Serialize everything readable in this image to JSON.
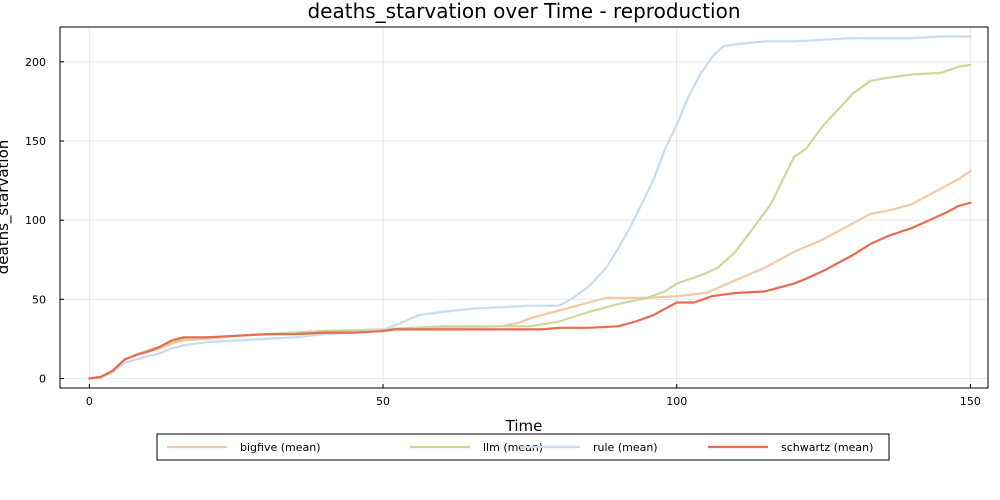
{
  "chart_data": {
    "type": "line",
    "title": "deaths_starvation over Time - reproduction",
    "xlabel": "Time",
    "ylabel": "deaths_starvation",
    "xlim": [
      -5,
      153
    ],
    "ylim": [
      -6,
      222
    ],
    "xticks": [
      0,
      50,
      100,
      150
    ],
    "yticks": [
      0,
      50,
      100,
      150,
      200
    ],
    "grid": true,
    "legend_position": "bottom-center",
    "series": [
      {
        "name": "bigfive (mean)",
        "color": "#f4c7a6",
        "points": [
          [
            0,
            0
          ],
          [
            2,
            1
          ],
          [
            4,
            5
          ],
          [
            6,
            12
          ],
          [
            8,
            15
          ],
          [
            10,
            17
          ],
          [
            12,
            19
          ],
          [
            14,
            22
          ],
          [
            16,
            24
          ],
          [
            20,
            25
          ],
          [
            25,
            27
          ],
          [
            30,
            28
          ],
          [
            40,
            30
          ],
          [
            50,
            31
          ],
          [
            55,
            32
          ],
          [
            60,
            32
          ],
          [
            70,
            33
          ],
          [
            73,
            35
          ],
          [
            75,
            38
          ],
          [
            80,
            43
          ],
          [
            85,
            48
          ],
          [
            88,
            51
          ],
          [
            95,
            51
          ],
          [
            100,
            52
          ],
          [
            105,
            54
          ],
          [
            110,
            62
          ],
          [
            115,
            70
          ],
          [
            120,
            80
          ],
          [
            125,
            88
          ],
          [
            130,
            98
          ],
          [
            133,
            104
          ],
          [
            136,
            106
          ],
          [
            140,
            110
          ],
          [
            143,
            116
          ],
          [
            146,
            122
          ],
          [
            148,
            126
          ],
          [
            150,
            131
          ]
        ]
      },
      {
        "name": "llm (mean)",
        "color": "#c8d99b",
        "points": [
          [
            0,
            0
          ],
          [
            2,
            1
          ],
          [
            4,
            5
          ],
          [
            6,
            12
          ],
          [
            8,
            15
          ],
          [
            10,
            18
          ],
          [
            12,
            20
          ],
          [
            14,
            23
          ],
          [
            16,
            25
          ],
          [
            20,
            26
          ],
          [
            25,
            27
          ],
          [
            30,
            28
          ],
          [
            40,
            30
          ],
          [
            50,
            31
          ],
          [
            55,
            32
          ],
          [
            60,
            33
          ],
          [
            70,
            33
          ],
          [
            75,
            33
          ],
          [
            80,
            36
          ],
          [
            85,
            42
          ],
          [
            90,
            47
          ],
          [
            95,
            51
          ],
          [
            98,
            55
          ],
          [
            100,
            60
          ],
          [
            104,
            65
          ],
          [
            107,
            70
          ],
          [
            110,
            80
          ],
          [
            113,
            95
          ],
          [
            116,
            110
          ],
          [
            118,
            125
          ],
          [
            120,
            140
          ],
          [
            122,
            145
          ],
          [
            125,
            160
          ],
          [
            128,
            172
          ],
          [
            130,
            180
          ],
          [
            133,
            188
          ],
          [
            136,
            190
          ],
          [
            140,
            192
          ],
          [
            145,
            193
          ],
          [
            148,
            197
          ],
          [
            150,
            198
          ]
        ]
      },
      {
        "name": "rule (mean)",
        "color": "#c9dcef",
        "points": [
          [
            0,
            0
          ],
          [
            2,
            1
          ],
          [
            4,
            4
          ],
          [
            6,
            10
          ],
          [
            8,
            12
          ],
          [
            10,
            14
          ],
          [
            12,
            16
          ],
          [
            14,
            19
          ],
          [
            16,
            21
          ],
          [
            20,
            23
          ],
          [
            25,
            24
          ],
          [
            30,
            25
          ],
          [
            35,
            26
          ],
          [
            40,
            28
          ],
          [
            45,
            29
          ],
          [
            50,
            31
          ],
          [
            53,
            35
          ],
          [
            56,
            40
          ],
          [
            60,
            42
          ],
          [
            65,
            44
          ],
          [
            70,
            45
          ],
          [
            75,
            46
          ],
          [
            80,
            46
          ],
          [
            82,
            50
          ],
          [
            85,
            58
          ],
          [
            88,
            70
          ],
          [
            90,
            82
          ],
          [
            92,
            95
          ],
          [
            94,
            110
          ],
          [
            96,
            125
          ],
          [
            98,
            145
          ],
          [
            100,
            160
          ],
          [
            102,
            178
          ],
          [
            104,
            192
          ],
          [
            106,
            203
          ],
          [
            108,
            210
          ],
          [
            110,
            211
          ],
          [
            115,
            213
          ],
          [
            120,
            213
          ],
          [
            125,
            214
          ],
          [
            130,
            215
          ],
          [
            135,
            215
          ],
          [
            140,
            215
          ],
          [
            145,
            216
          ],
          [
            150,
            216
          ]
        ]
      },
      {
        "name": "schwartz (mean)",
        "color": "#e66b51",
        "points": [
          [
            0,
            0
          ],
          [
            2,
            1
          ],
          [
            4,
            5
          ],
          [
            6,
            12
          ],
          [
            8,
            15
          ],
          [
            10,
            17
          ],
          [
            12,
            20
          ],
          [
            14,
            24
          ],
          [
            16,
            26
          ],
          [
            20,
            26
          ],
          [
            25,
            27
          ],
          [
            30,
            28
          ],
          [
            35,
            28
          ],
          [
            40,
            29
          ],
          [
            45,
            29
          ],
          [
            50,
            30
          ],
          [
            52,
            31
          ],
          [
            60,
            31
          ],
          [
            70,
            31
          ],
          [
            77,
            31
          ],
          [
            80,
            32
          ],
          [
            85,
            32
          ],
          [
            90,
            33
          ],
          [
            93,
            36
          ],
          [
            96,
            40
          ],
          [
            98,
            44
          ],
          [
            100,
            48
          ],
          [
            103,
            48
          ],
          [
            106,
            52
          ],
          [
            110,
            54
          ],
          [
            115,
            55
          ],
          [
            118,
            58
          ],
          [
            120,
            60
          ],
          [
            122,
            63
          ],
          [
            125,
            68
          ],
          [
            127,
            72
          ],
          [
            130,
            78
          ],
          [
            133,
            85
          ],
          [
            136,
            90
          ],
          [
            140,
            95
          ],
          [
            143,
            100
          ],
          [
            146,
            105
          ],
          [
            148,
            109
          ],
          [
            150,
            111
          ]
        ]
      }
    ]
  }
}
